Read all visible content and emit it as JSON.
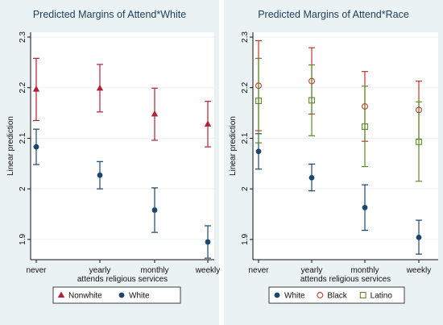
{
  "chart_data": [
    {
      "type": "scatter",
      "title": "Predicted Margins of Attend*White",
      "xlabel": "attends religious services",
      "ylabel": "Linear prediction",
      "categories": [
        "never",
        "yearly",
        "monthly",
        "weekly"
      ],
      "ylim": [
        1.86,
        2.3
      ],
      "yticks": [
        "1.9",
        "2",
        "2.1",
        "2.2",
        "2.3"
      ],
      "grid": true,
      "legend_position": "bottom",
      "series": [
        {
          "name": "Nonwhite",
          "marker": "triangle",
          "color": "#b22234",
          "values": [
            2.197,
            2.199,
            2.148,
            2.128
          ],
          "lower": [
            2.135,
            2.152,
            2.096,
            2.083
          ],
          "upper": [
            2.258,
            2.246,
            2.199,
            2.173
          ]
        },
        {
          "name": "White",
          "marker": "circle",
          "color": "#1a476f",
          "values": [
            2.083,
            2.027,
            1.958,
            1.895
          ],
          "lower": [
            2.048,
            2.0,
            1.914,
            1.863
          ],
          "upper": [
            2.118,
            2.054,
            2.002,
            1.927
          ]
        }
      ]
    },
    {
      "type": "scatter",
      "title": "Predicted Margins of Attend*Race",
      "xlabel": "attends religious services",
      "ylabel": "Linear prediction",
      "categories": [
        "never",
        "yearly",
        "monthly",
        "weekly"
      ],
      "ylim": [
        1.86,
        2.3
      ],
      "yticks": [
        "1.9",
        "2",
        "2.1",
        "2.2",
        "2.3"
      ],
      "grid": true,
      "legend_position": "bottom",
      "series": [
        {
          "name": "White",
          "marker": "circle",
          "color": "#1a476f",
          "values": [
            2.074,
            2.022,
            1.963,
            1.904
          ],
          "lower": [
            2.039,
            1.996,
            1.918,
            1.871
          ],
          "upper": [
            2.109,
            2.049,
            2.008,
            1.938
          ]
        },
        {
          "name": "Black",
          "marker": "hollow-circle",
          "color": "#c0392b",
          "values": [
            2.204,
            2.213,
            2.163,
            2.156
          ],
          "lower": [
            2.115,
            2.148,
            2.094,
            2.098
          ],
          "upper": [
            2.293,
            2.279,
            2.232,
            2.213
          ]
        },
        {
          "name": "Latino",
          "marker": "hollow-square",
          "color": "#5a8a2b",
          "values": [
            2.174,
            2.175,
            2.123,
            2.093
          ],
          "lower": [
            2.091,
            2.105,
            2.044,
            2.015
          ],
          "upper": [
            2.258,
            2.245,
            2.203,
            2.172
          ]
        }
      ]
    }
  ]
}
